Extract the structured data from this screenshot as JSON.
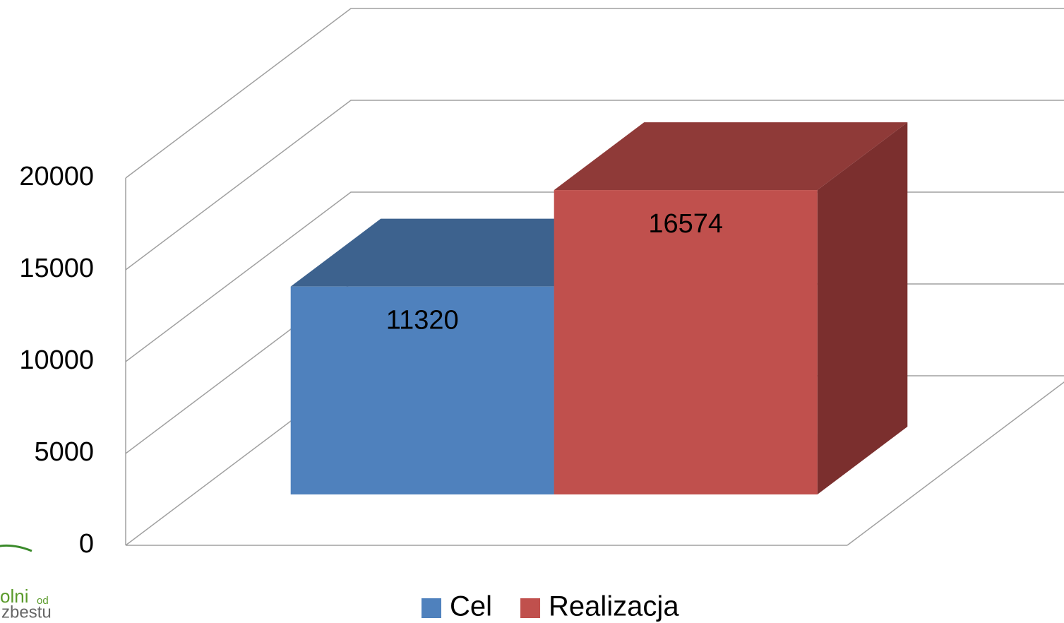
{
  "chart_data": {
    "type": "bar3d",
    "categories": [
      null
    ],
    "series": [
      {
        "name": "Cel",
        "color": "#4f81bd",
        "top_color": "#3d628e",
        "side_color": "#34537a",
        "values": [
          11320
        ]
      },
      {
        "name": "Realizacja",
        "color": "#c0504d",
        "top_color": "#8f3a38",
        "side_color": "#7b2f2e",
        "values": [
          16574
        ]
      }
    ],
    "ylim": [
      0,
      20000
    ],
    "yticks": [
      0,
      5000,
      10000,
      15000,
      20000
    ],
    "grid": true,
    "legend": "bottom"
  },
  "logo": {
    "line1": "olni",
    "line1_small": "od",
    "line2": "zbestu"
  }
}
